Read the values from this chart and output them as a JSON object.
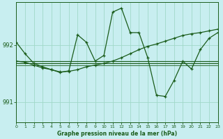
{
  "title": "Graphe pression niveau de la mer (hPa)",
  "background_color": "#c8eef0",
  "grid_color": "#a0d8c8",
  "line_color": "#1a5c1a",
  "xlim": [
    0,
    23
  ],
  "ylim": [
    990.65,
    992.75
  ],
  "yticks": [
    991,
    992
  ],
  "xticks": [
    0,
    1,
    2,
    3,
    4,
    5,
    6,
    7,
    8,
    9,
    10,
    11,
    12,
    13,
    14,
    15,
    16,
    17,
    18,
    19,
    20,
    21,
    22,
    23
  ],
  "curve_main_x": [
    0,
    1,
    2,
    3,
    4,
    5,
    6,
    7,
    8,
    9,
    10,
    11,
    12,
    13,
    14,
    15,
    16,
    17,
    18,
    19,
    20,
    21,
    22,
    23
  ],
  "curve_main_y": [
    992.05,
    991.85,
    991.68,
    991.62,
    991.57,
    991.52,
    991.55,
    992.18,
    992.05,
    991.72,
    991.82,
    992.58,
    992.65,
    992.22,
    992.22,
    991.78,
    991.12,
    991.1,
    991.38,
    991.72,
    991.58,
    991.92,
    992.12,
    992.22
  ],
  "curve_smooth_x": [
    0,
    1,
    2,
    3,
    4,
    5,
    6,
    7,
    8,
    9,
    10,
    11,
    12,
    13,
    14,
    15,
    16,
    17,
    18,
    19,
    20,
    21,
    22,
    23
  ],
  "curve_smooth_y": [
    991.72,
    991.7,
    991.65,
    991.6,
    991.57,
    991.53,
    991.54,
    991.57,
    991.62,
    991.65,
    991.68,
    991.72,
    991.78,
    991.85,
    991.92,
    991.98,
    992.02,
    992.07,
    992.12,
    992.17,
    992.2,
    992.22,
    992.25,
    992.28
  ],
  "flat1_y": 991.72,
  "flat2_y": 991.68,
  "flat3_y": 991.65,
  "flat_x_start": 0,
  "flat_x_end": 23
}
